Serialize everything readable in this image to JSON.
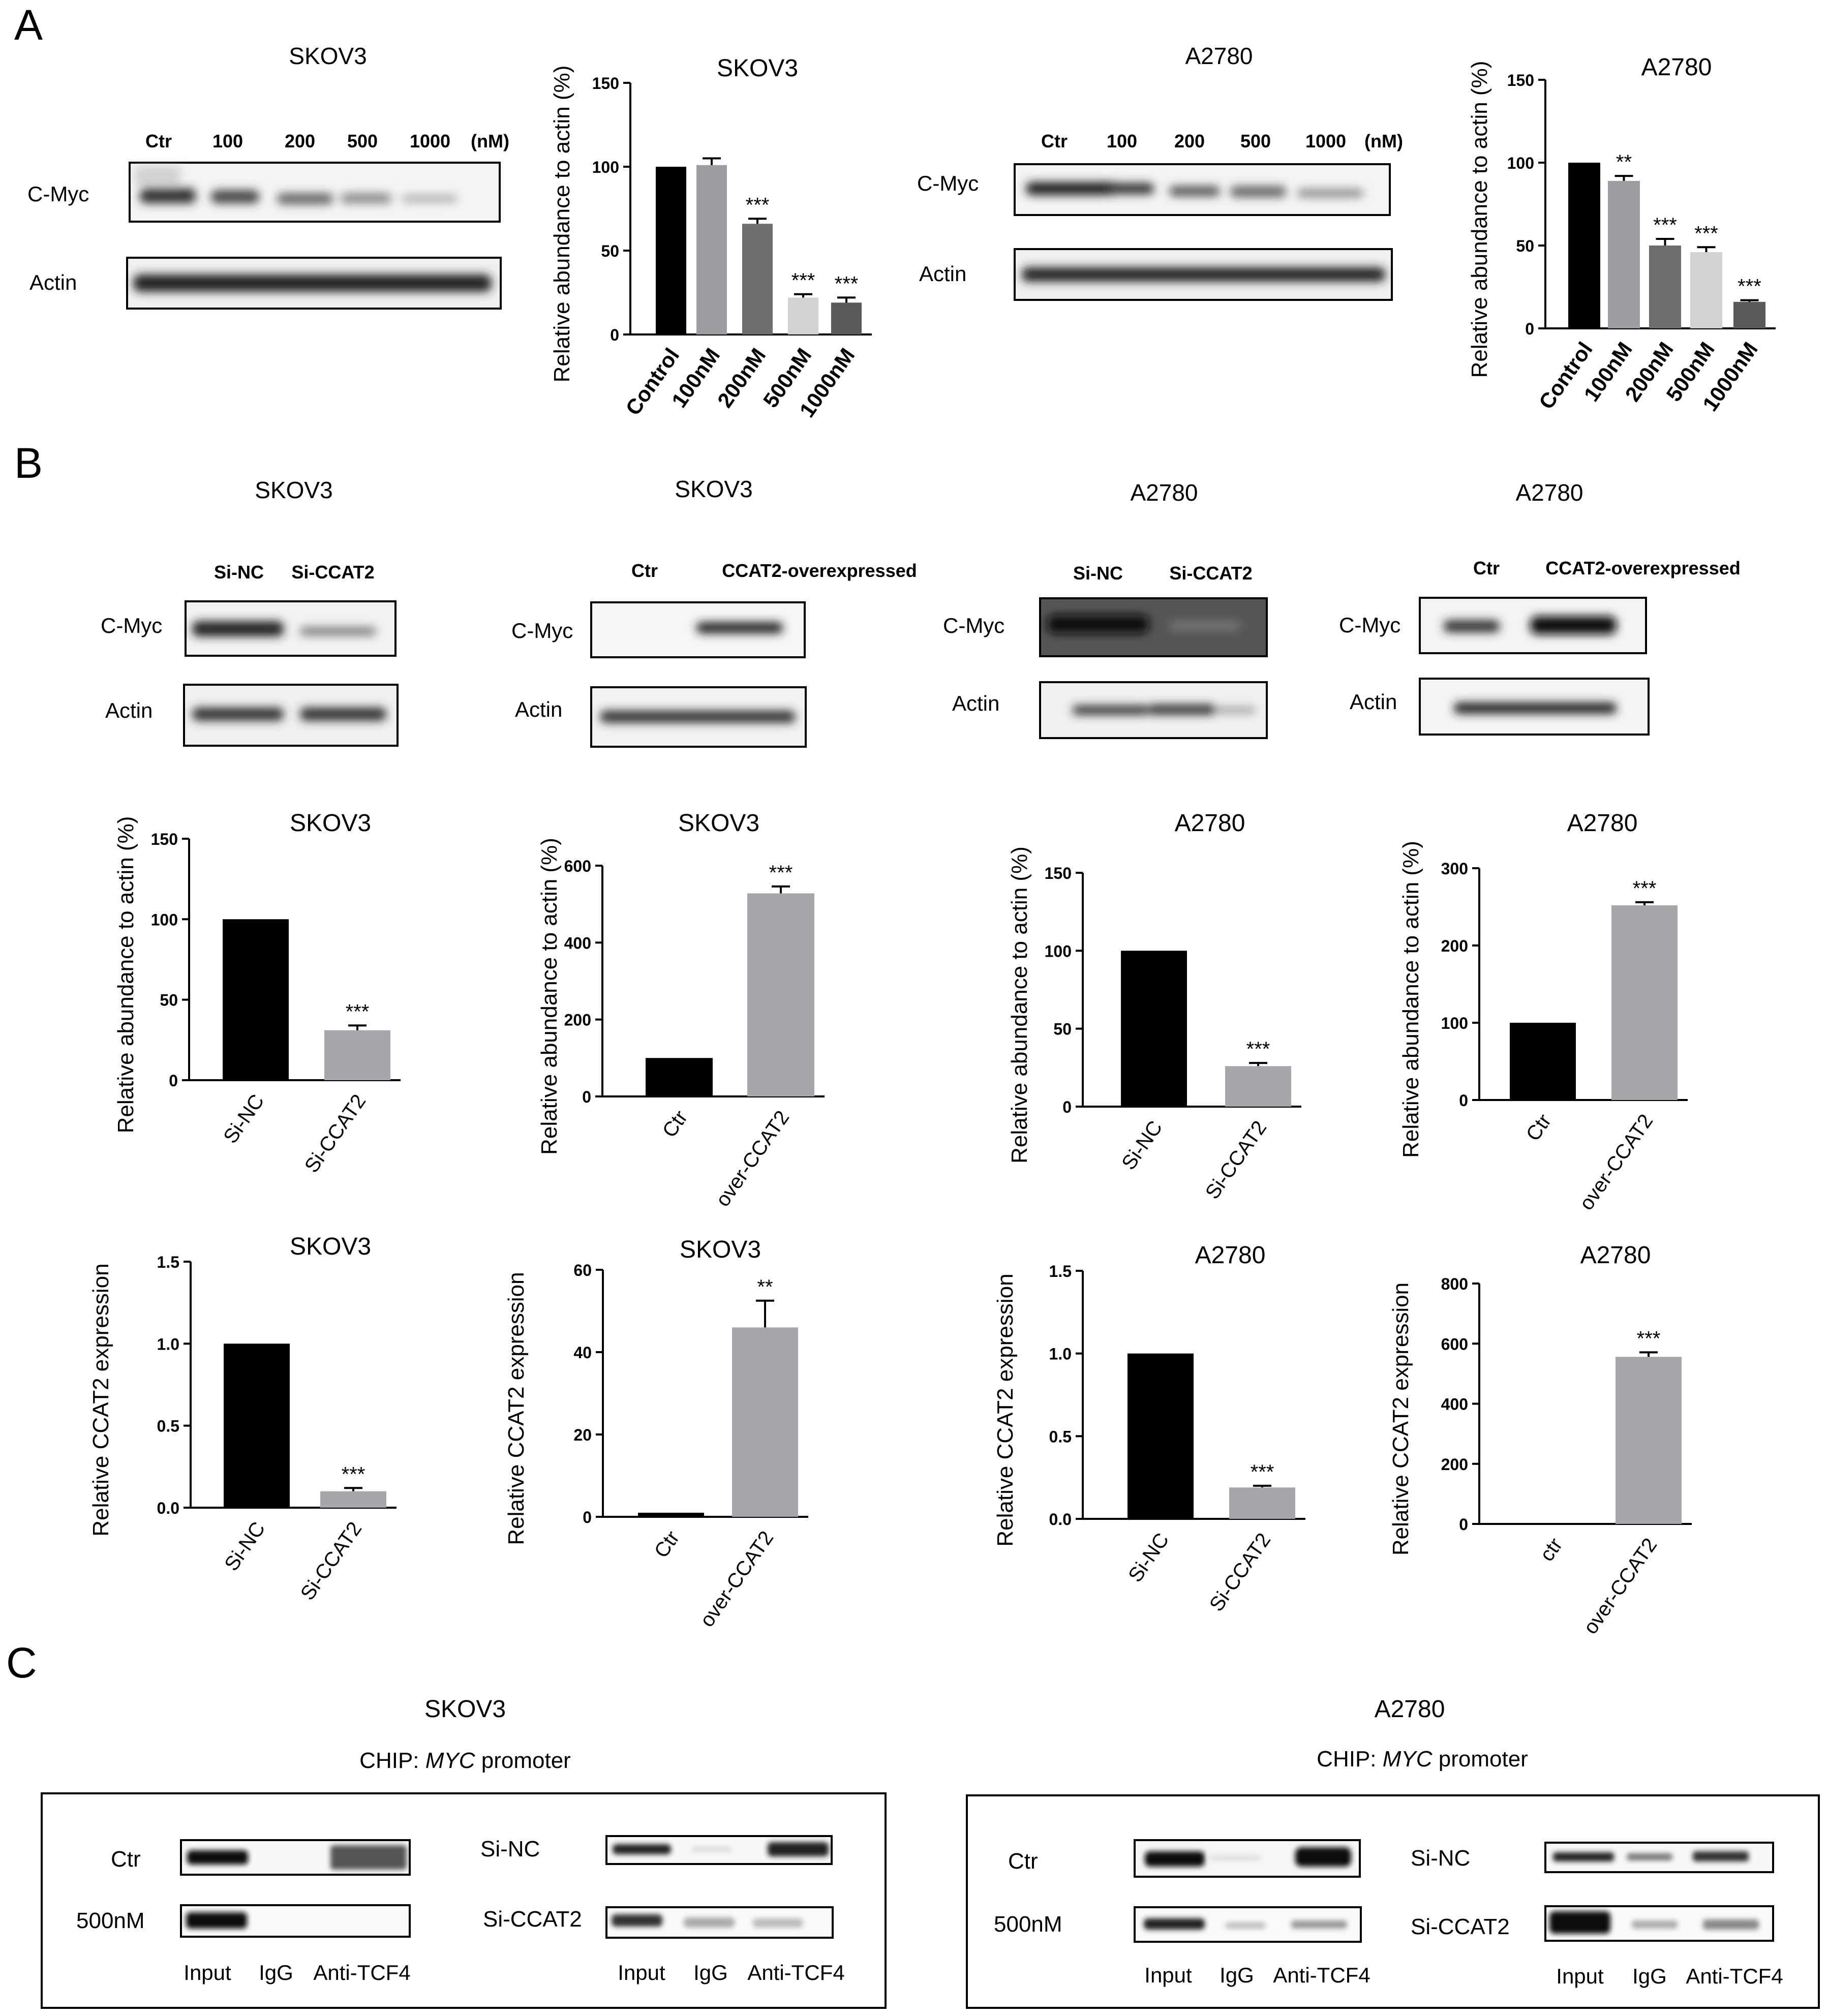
{
  "panels": {
    "A": "A",
    "B": "B",
    "C": "C"
  },
  "colors": {
    "black": "#000000",
    "gray_light": "#a7a7ab",
    "gray_mid": "#8c8c8c",
    "gray_dark": "#6b6b6b",
    "gray_pale": "#d8d8d8",
    "blot_dark": "#222222"
  },
  "sectionA": {
    "blots": [
      {
        "title": "SKOV3",
        "lanes": [
          "Ctr",
          "100",
          "200",
          "500",
          "1000",
          "(nM)"
        ],
        "rows": [
          "C-Myc",
          "Actin"
        ]
      },
      {
        "title": "A2780",
        "lanes": [
          "Ctr",
          "100",
          "200",
          "500",
          "1000",
          "(nM)"
        ],
        "rows": [
          "C-Myc",
          "Actin"
        ]
      }
    ]
  },
  "sectionB": {
    "blots": [
      {
        "title": "SKOV3",
        "lanes": [
          "Si-NC",
          "Si-CCAT2"
        ],
        "rows": [
          "C-Myc",
          "Actin"
        ]
      },
      {
        "title": "SKOV3",
        "lanes": [
          "Ctr",
          "CCAT2-overexpressed"
        ],
        "rows": [
          "C-Myc",
          "Actin"
        ]
      },
      {
        "title": "A2780",
        "lanes": [
          "Si-NC",
          "Si-CCAT2"
        ],
        "rows": [
          "C-Myc",
          "Actin"
        ]
      },
      {
        "title": "A2780",
        "lanes": [
          "Ctr",
          "CCAT2-overexpressed"
        ],
        "rows": [
          "C-Myc",
          "Actin"
        ]
      }
    ]
  },
  "sectionC": {
    "groups": [
      {
        "title": "SKOV3",
        "subtitle_prefix": "CHIP: ",
        "subtitle_italic": "MYC",
        "subtitle_suffix": " promoter",
        "left_rows": [
          "Ctr",
          "500nM"
        ],
        "right_rows": [
          "Si-NC",
          "Si-CCAT2"
        ],
        "lanes": [
          "Input",
          "IgG",
          "Anti-TCF4"
        ]
      },
      {
        "title": "A2780",
        "subtitle_prefix": "CHIP: ",
        "subtitle_italic": "MYC",
        "subtitle_suffix": " promoter",
        "left_rows": [
          "Ctr",
          "500nM"
        ],
        "right_rows": [
          "Si-NC",
          "Si-CCAT2"
        ],
        "lanes": [
          "Input",
          "IgG",
          "Anti-TCF4"
        ]
      }
    ]
  },
  "chart_data": [
    {
      "type": "bar",
      "title": "SKOV3",
      "ylabel": "Relative abundance to actin (%)",
      "ylim": [
        0,
        150
      ],
      "yticks": [
        0,
        50,
        100,
        150
      ],
      "categories": [
        "Control",
        "100nM",
        "200nM",
        "500nM",
        "1000nM"
      ],
      "values": [
        100,
        101,
        66,
        22,
        19
      ],
      "errors": [
        0,
        4,
        3,
        2,
        3
      ],
      "significance": [
        "",
        "",
        "***",
        "***",
        "***"
      ],
      "bar_colors": [
        "#000000",
        "#9e9ea2",
        "#6e6e6e",
        "#d2d2d2",
        "#5a5a5a"
      ]
    },
    {
      "type": "bar",
      "title": "A2780",
      "ylabel": "Relative abundance to actin (%)",
      "ylim": [
        0,
        150
      ],
      "yticks": [
        0,
        50,
        100,
        150
      ],
      "categories": [
        "Control",
        "100nM",
        "200nM",
        "500nM",
        "1000nM"
      ],
      "values": [
        100,
        89,
        50,
        46,
        16
      ],
      "errors": [
        0,
        3,
        4,
        3,
        1
      ],
      "significance": [
        "",
        "**",
        "***",
        "***",
        "***"
      ],
      "bar_colors": [
        "#000000",
        "#9e9ea2",
        "#6e6e6e",
        "#d2d2d2",
        "#5a5a5a"
      ]
    },
    {
      "type": "bar",
      "title": "SKOV3",
      "ylabel": "Relative abundance to actin (%)",
      "ylim": [
        0,
        150
      ],
      "yticks": [
        0,
        50,
        100,
        150
      ],
      "categories": [
        "Si-NC",
        "Si-CCAT2"
      ],
      "values": [
        100,
        31
      ],
      "errors": [
        0,
        3
      ],
      "significance": [
        "",
        "***"
      ],
      "bar_colors": [
        "#000000",
        "#a7a7ab"
      ]
    },
    {
      "type": "bar",
      "title": "SKOV3",
      "ylabel": "Relative abundance to actin (%)",
      "ylim": [
        0,
        600
      ],
      "yticks": [
        0,
        200,
        400,
        600
      ],
      "categories": [
        "Ctr",
        "over-CCAT2"
      ],
      "values": [
        100,
        528
      ],
      "errors": [
        0,
        18
      ],
      "significance": [
        "",
        "***"
      ],
      "bar_colors": [
        "#000000",
        "#a7a7ab"
      ]
    },
    {
      "type": "bar",
      "title": "A2780",
      "ylabel": "Relative abundance to actin (%)",
      "ylim": [
        0,
        150
      ],
      "yticks": [
        0,
        50,
        100,
        150
      ],
      "categories": [
        "Si-NC",
        "Si-CCAT2"
      ],
      "values": [
        100,
        26
      ],
      "errors": [
        0,
        2
      ],
      "significance": [
        "",
        "***"
      ],
      "bar_colors": [
        "#000000",
        "#a7a7ab"
      ]
    },
    {
      "type": "bar",
      "title": "A2780",
      "ylabel": "Relative abundance to actin (%)",
      "ylim": [
        0,
        300
      ],
      "yticks": [
        0,
        100,
        200,
        300
      ],
      "categories": [
        "Ctr",
        "over-CCAT2"
      ],
      "values": [
        100,
        252
      ],
      "errors": [
        0,
        4
      ],
      "significance": [
        "",
        "***"
      ],
      "bar_colors": [
        "#000000",
        "#a7a7ab"
      ]
    },
    {
      "type": "bar",
      "title": "SKOV3",
      "ylabel": "Relative CCAT2 expression",
      "ylim": [
        0,
        1.5
      ],
      "yticks": [
        "0.0",
        "0.5",
        "1.0",
        "1.5"
      ],
      "categories": [
        "Si-NC",
        "Si-CCAT2"
      ],
      "values": [
        1.0,
        0.1
      ],
      "errors": [
        0,
        0.02
      ],
      "significance": [
        "",
        "***"
      ],
      "bar_colors": [
        "#000000",
        "#a7a7ab"
      ]
    },
    {
      "type": "bar",
      "title": "SKOV3",
      "ylabel": "Relative CCAT2 expression",
      "ylim": [
        0,
        60
      ],
      "yticks": [
        0,
        20,
        40,
        60
      ],
      "categories": [
        "Ctr",
        "over-CCAT2"
      ],
      "values": [
        1,
        46
      ],
      "errors": [
        0,
        6.5
      ],
      "significance": [
        "",
        "**"
      ],
      "bar_colors": [
        "#000000",
        "#a7a7ab"
      ]
    },
    {
      "type": "bar",
      "title": "A2780",
      "ylabel": "Relative CCAT2 expression",
      "ylim": [
        0,
        1.5
      ],
      "yticks": [
        "0.0",
        "0.5",
        "1.0",
        "1.5"
      ],
      "categories": [
        "Si-NC",
        "Si-CCAT2"
      ],
      "values": [
        1.0,
        0.19
      ],
      "errors": [
        0,
        0.01
      ],
      "significance": [
        "",
        "***"
      ],
      "bar_colors": [
        "#000000",
        "#a7a7ab"
      ]
    },
    {
      "type": "bar",
      "title": "A2780",
      "ylabel": "Relative CCAT2 expression",
      "ylim": [
        0,
        800
      ],
      "yticks": [
        0,
        200,
        400,
        600,
        800
      ],
      "categories": [
        "ctr",
        "over-CCAT2"
      ],
      "values": [
        1,
        556
      ],
      "errors": [
        0,
        15
      ],
      "significance": [
        "",
        "***"
      ],
      "bar_colors": [
        "#000000",
        "#a7a7ab"
      ]
    }
  ]
}
